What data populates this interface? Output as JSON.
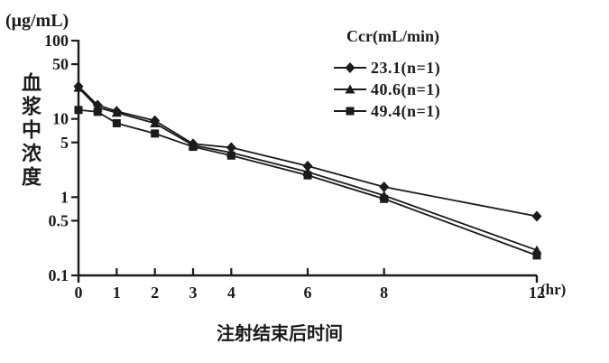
{
  "colors": {
    "ink": "#1b1b1b",
    "background": "#ffffff"
  },
  "chart_data": {
    "type": "line",
    "ylabel_unit": "(μg/mL)",
    "ylabel": "血浆中浓度",
    "xlabel": "注射结束后时间",
    "x_unit": "(hr)",
    "y_scale": "log",
    "ylim": [
      0.1,
      100
    ],
    "xlim": [
      0,
      12
    ],
    "grid": false,
    "y_ticks": [
      "100",
      "50",
      "10",
      "5",
      "1",
      "0.5",
      "0.1"
    ],
    "x_ticks": [
      "0",
      "1",
      "2",
      "3",
      "4",
      "6",
      "8",
      "12"
    ],
    "legend_title": "Ccr(mL/min)",
    "legend_position": "top-right-inside",
    "x": [
      0,
      0.5,
      1,
      2,
      3,
      4,
      6,
      8,
      12
    ],
    "series": [
      {
        "name": "23.1(n=1)",
        "marker": "diamond",
        "values": [
          26,
          15,
          12.5,
          9.5,
          4.8,
          4.3,
          2.5,
          1.35,
          0.57
        ]
      },
      {
        "name": "40.6(n=1)",
        "marker": "triangle",
        "values": [
          25,
          14,
          12,
          8.8,
          4.6,
          3.7,
          2.1,
          1.05,
          0.21
        ]
      },
      {
        "name": "49.4(n=1)",
        "marker": "square",
        "values": [
          13,
          12.3,
          8.8,
          6.5,
          4.4,
          3.4,
          1.9,
          0.95,
          0.18
        ]
      }
    ]
  }
}
